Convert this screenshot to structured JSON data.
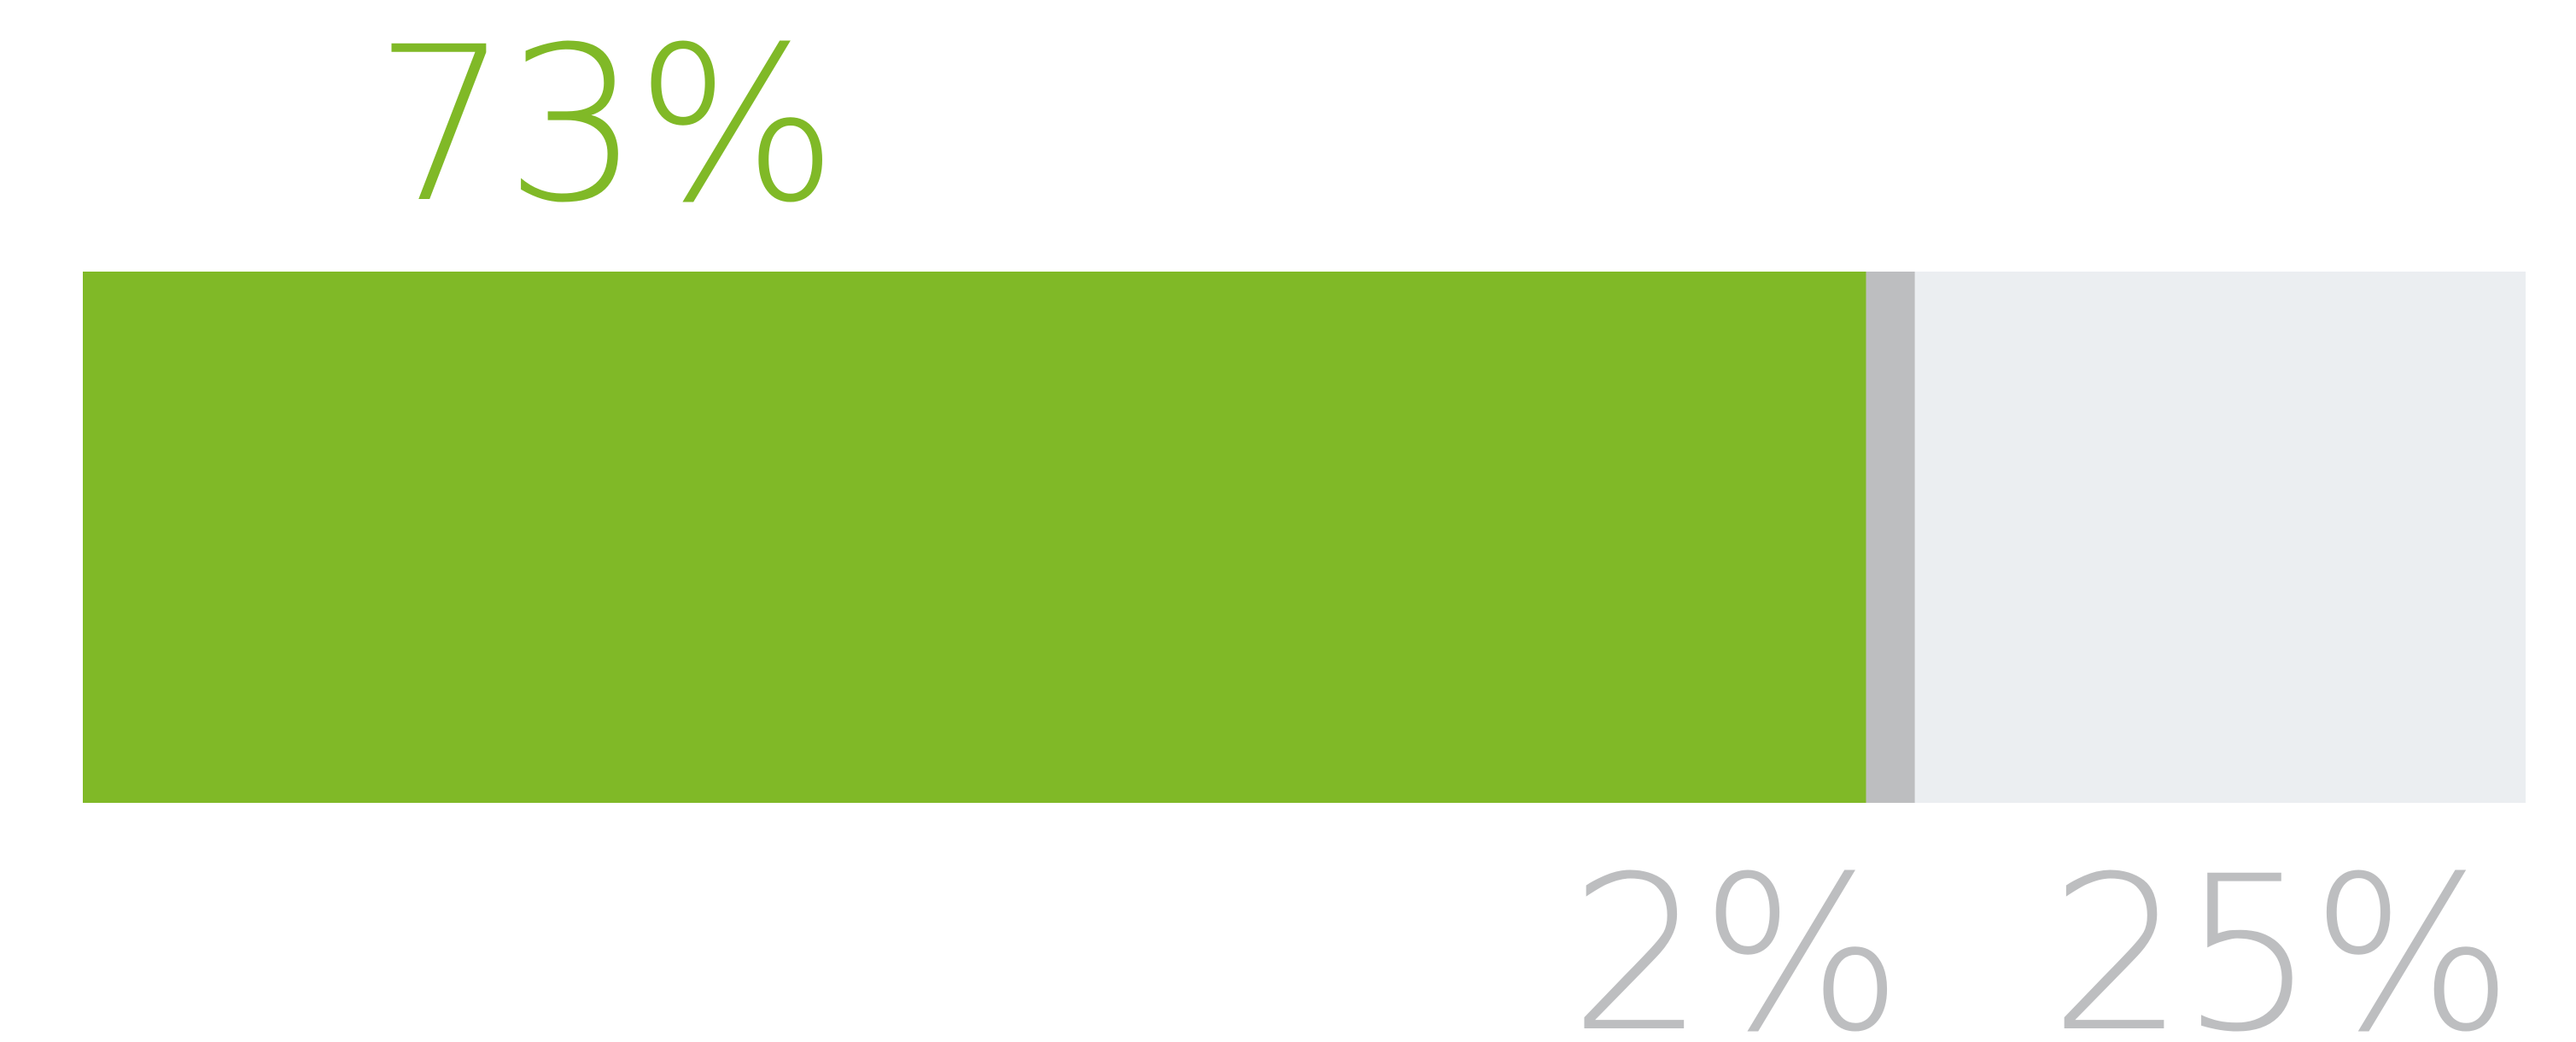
{
  "chart_data": {
    "type": "bar",
    "stacked": true,
    "orientation": "horizontal",
    "categories": [
      ""
    ],
    "series": [
      {
        "values": [
          73
        ],
        "color": "#80b927",
        "label": "73%",
        "label_position": "above",
        "label_color": "#80b927"
      },
      {
        "values": [
          2
        ],
        "color": "#bdbec0",
        "label": "2%",
        "label_position": "below",
        "label_color": "#bdbec0"
      },
      {
        "values": [
          25
        ],
        "color": "#ebeef1",
        "label": "25%",
        "label_position": "below",
        "label_color": "#bdbec0"
      }
    ],
    "xlim": [
      0,
      100
    ],
    "title": "",
    "xlabel": "",
    "ylabel": "",
    "grid": false,
    "legend": "none"
  }
}
